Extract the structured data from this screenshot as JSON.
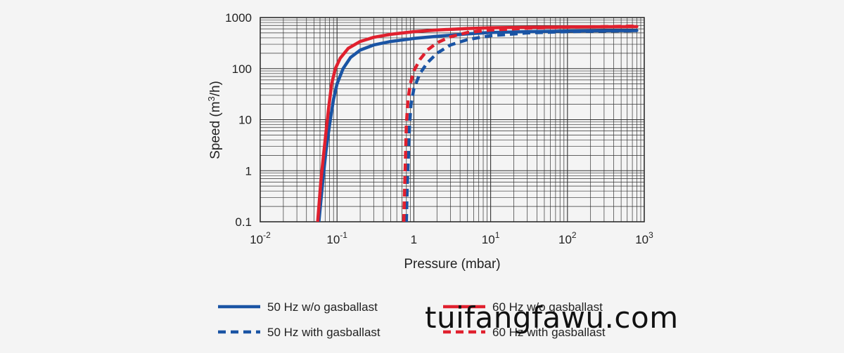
{
  "chart_data": {
    "type": "line",
    "title": "",
    "xlabel": "Pressure (mbar)",
    "ylabel": "Speed (m3/h)",
    "x_scale": "log",
    "y_scale": "log",
    "xlim": [
      0.01,
      1000
    ],
    "ylim": [
      0.1,
      1000
    ],
    "grid": true,
    "legend_position": "bottom",
    "x_ticks": [
      {
        "value": 0.01,
        "base": "10",
        "exp": "-2"
      },
      {
        "value": 0.1,
        "base": "10",
        "exp": "-1"
      },
      {
        "value": 1,
        "base": "1",
        "exp": ""
      },
      {
        "value": 10,
        "base": "10",
        "exp": "1"
      },
      {
        "value": 100,
        "base": "10",
        "exp": "2"
      },
      {
        "value": 1000,
        "base": "10",
        "exp": "3"
      }
    ],
    "y_ticks": [
      {
        "value": 0.1,
        "label": "0.1"
      },
      {
        "value": 1,
        "label": "1"
      },
      {
        "value": 10,
        "label": "10"
      },
      {
        "value": 100,
        "label": "100"
      },
      {
        "value": 1000,
        "label": "1000"
      }
    ],
    "series": [
      {
        "name": "50 Hz w/o gasballast",
        "color": "#1a54a4",
        "style": "solid",
        "x": [
          0.058,
          0.065,
          0.072,
          0.08,
          0.09,
          0.1,
          0.12,
          0.15,
          0.2,
          0.3,
          0.5,
          1,
          2,
          5,
          10,
          30,
          100,
          300,
          800
        ],
        "y": [
          0.1,
          0.6,
          2.5,
          8,
          25,
          50,
          100,
          165,
          230,
          290,
          340,
          390,
          430,
          480,
          510,
          530,
          545,
          552,
          555
        ]
      },
      {
        "name": "50 Hz with gasballast",
        "color": "#1a54a4",
        "style": "dashed",
        "x": [
          0.8,
          0.82,
          0.85,
          0.88,
          0.92,
          1.0,
          1.2,
          1.5,
          2,
          3,
          5,
          10,
          30,
          100,
          300,
          800
        ],
        "y": [
          0.1,
          0.5,
          2,
          8,
          20,
          40,
          80,
          130,
          200,
          290,
          370,
          440,
          500,
          530,
          545,
          552
        ]
      },
      {
        "name": "60 Hz w/o gasballast",
        "color": "#e0202e",
        "style": "solid",
        "x": [
          0.056,
          0.062,
          0.07,
          0.077,
          0.085,
          0.095,
          0.11,
          0.14,
          0.2,
          0.3,
          0.5,
          1,
          2,
          5,
          10,
          30,
          100,
          300,
          800
        ],
        "y": [
          0.1,
          0.7,
          4,
          15,
          50,
          100,
          160,
          250,
          340,
          410,
          470,
          530,
          570,
          610,
          630,
          645,
          655,
          660,
          665
        ]
      },
      {
        "name": "60 Hz with gasballast",
        "color": "#e0202e",
        "style": "dashed",
        "x": [
          0.74,
          0.76,
          0.78,
          0.8,
          0.84,
          0.9,
          1.0,
          1.2,
          1.5,
          2,
          3,
          5,
          10,
          30,
          100,
          300,
          800
        ],
        "y": [
          0.1,
          0.5,
          2,
          8,
          25,
          50,
          90,
          150,
          230,
          320,
          420,
          510,
          570,
          620,
          650,
          665,
          680
        ]
      }
    ]
  },
  "watermark_text": "tuifangfawu.com"
}
